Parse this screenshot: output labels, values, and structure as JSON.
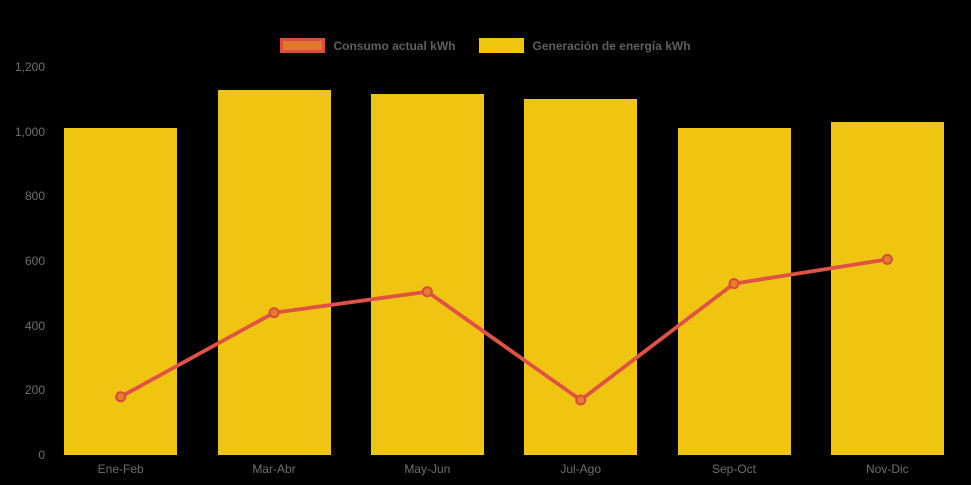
{
  "legend": {
    "items": [
      {
        "label": "Consumo actual kWh",
        "series_type": "line"
      },
      {
        "label": "Generación de energía kWh",
        "series_type": "bar"
      }
    ]
  },
  "colors": {
    "background": "#000000",
    "bar": "#F0C512",
    "line": "#E05245",
    "marker_fill": "#E0802B",
    "marker_stroke": "#DC4A3D",
    "legend_line_swatch_fill": "#E0772B",
    "legend_line_swatch_border": "#E04B3B",
    "axis_text": "#6E6E6E",
    "legend_text": "#5F5F5F"
  },
  "chart_data": {
    "type": "bar",
    "subtype": "bar-line-combo",
    "categories": [
      "Ene-Feb",
      "Mar-Abr",
      "May-Jun",
      "Jul-Ago",
      "Sep-Oct",
      "Nov-Dic"
    ],
    "series": [
      {
        "name": "Generación de energía kWh",
        "type": "bar",
        "color": "#F0C512",
        "values": [
          1010,
          1130,
          1115,
          1100,
          1010,
          1030
        ]
      },
      {
        "name": "Consumo actual kWh",
        "type": "line",
        "color": "#E05245",
        "values": [
          180,
          440,
          505,
          170,
          530,
          605
        ]
      }
    ],
    "title": "",
    "xlabel": "",
    "ylabel": "",
    "ylim": [
      0,
      1200
    ],
    "y_tick_values": [
      0,
      200,
      400,
      600,
      800,
      1000,
      1200
    ],
    "y_tick_labels": [
      "0",
      "200",
      "400",
      "600",
      "800",
      "1,000",
      "1,200"
    ],
    "grid": false,
    "legend_position": "top-center",
    "background": "black"
  }
}
